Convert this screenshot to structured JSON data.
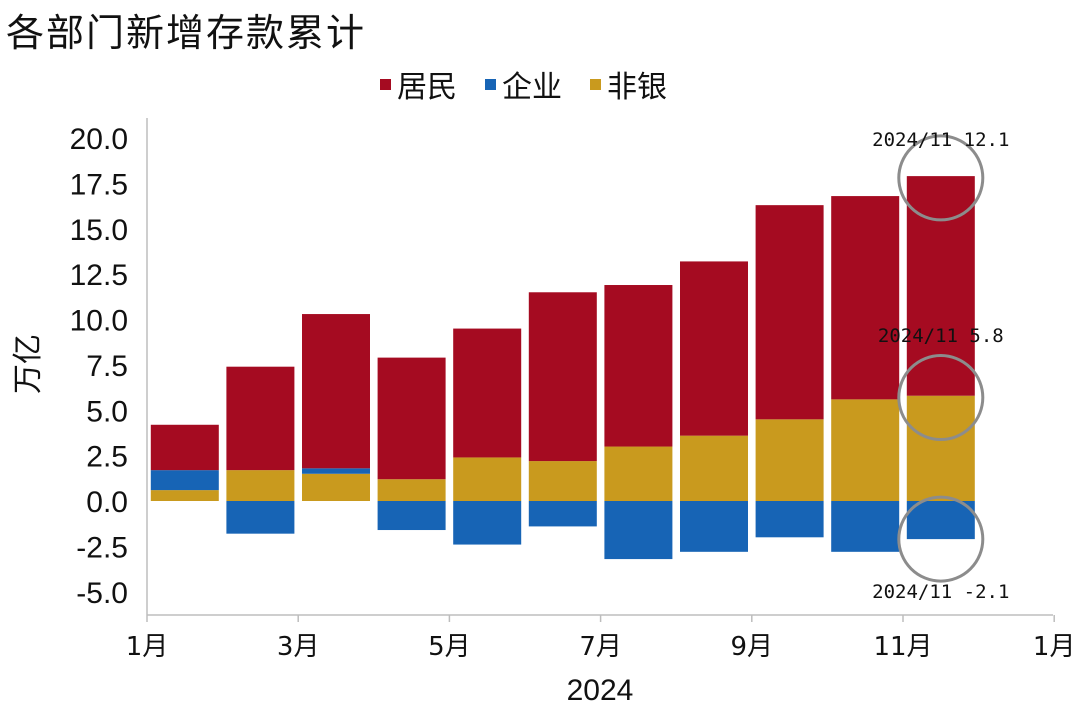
{
  "title": "各部门新增存款累计",
  "legend": [
    {
      "label": "居民",
      "color": "#a50b21"
    },
    {
      "label": "企业",
      "color": "#1764b5"
    },
    {
      "label": "非银",
      "color": "#c99a1e"
    }
  ],
  "chart_data": {
    "type": "bar",
    "stacked": true,
    "title": "各部门新增存款累计",
    "ylabel": "万亿",
    "xlabel": "2024",
    "ylim": [
      -6.2,
      21.0
    ],
    "yticks": [
      "20.0",
      "17.5",
      "15.0",
      "12.5",
      "10.0",
      "7.5",
      "5.0",
      "2.5",
      "0.0",
      "-2.5",
      "-5.0"
    ],
    "ytick_values": [
      20.0,
      17.5,
      15.0,
      12.5,
      10.0,
      7.5,
      5.0,
      2.5,
      0.0,
      -2.5,
      -5.0
    ],
    "xticks": [
      "1月",
      "3月",
      "5月",
      "7月",
      "9月",
      "11月",
      "1月"
    ],
    "categories": [
      "2024-01",
      "2024-02",
      "2024-03",
      "2024-04",
      "2024-05",
      "2024-06",
      "2024-07",
      "2024-08",
      "2024-09",
      "2024-10",
      "2024-11"
    ],
    "series": [
      {
        "name": "非银",
        "color": "#c99a1e",
        "values": [
          0.6,
          1.7,
          1.5,
          1.2,
          2.4,
          2.2,
          3.0,
          3.6,
          4.5,
          5.6,
          5.8
        ]
      },
      {
        "name": "企业",
        "color": "#1764b5",
        "values": [
          1.1,
          -1.8,
          0.3,
          -1.6,
          -2.4,
          -1.4,
          -3.2,
          -2.8,
          -2.0,
          -2.8,
          -2.1
        ]
      },
      {
        "name": "居民",
        "color": "#a50b21",
        "values": [
          2.5,
          5.7,
          8.5,
          6.7,
          7.1,
          9.3,
          8.9,
          9.6,
          11.8,
          11.2,
          12.1
        ]
      }
    ],
    "annotations": [
      {
        "text": "2024/11 12.1",
        "category": "2024-11",
        "value": 17.8
      },
      {
        "text": "2024/11 5.8",
        "category": "2024-11",
        "value": 5.7
      },
      {
        "text": "2024/11 -2.1",
        "category": "2024-11",
        "value": -2.1
      }
    ],
    "grid": false,
    "legend_position": "top-center"
  }
}
